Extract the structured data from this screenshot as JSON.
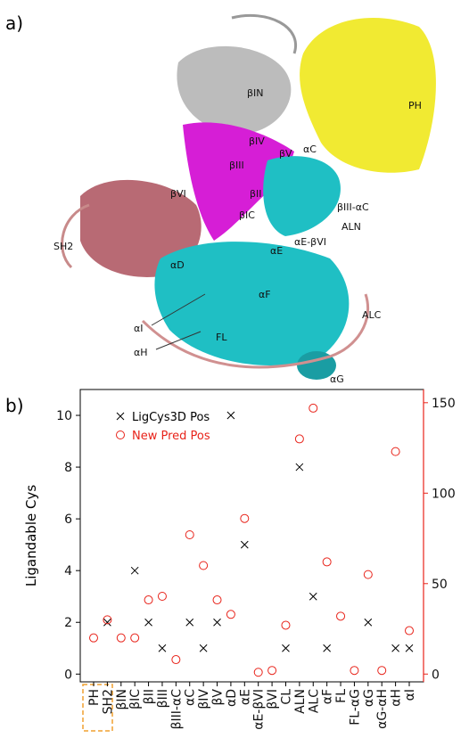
{
  "panel_a": {
    "label": "a)",
    "structure_labels": [
      "PH",
      "βIN",
      "βIV",
      "βV",
      "αC",
      "βIII",
      "βII",
      "βVI",
      "βIII-αC",
      "SH2",
      "βIC",
      "ALN",
      "αE-βVI",
      "αE",
      "αD",
      "αF",
      "αI",
      "FL",
      "ALC",
      "αH",
      "αG"
    ]
  },
  "chart_data": {
    "type": "scatter",
    "panel_label": "b)",
    "y_label": "Ligandable Cys",
    "categories": [
      "PH",
      "SH2",
      "βIN",
      "βIC",
      "βII",
      "βIII",
      "βIII-αC",
      "αC",
      "βIV",
      "βV",
      "αD",
      "αE",
      "αE-βVI",
      "βVI",
      "CL",
      "ALN",
      "ALC",
      "αF",
      "FL",
      "FL-αG",
      "αG",
      "αG-αH",
      "αH",
      "αI"
    ],
    "series": [
      {
        "name": "LigCys3D Pos",
        "color": "#000000",
        "marker": "x",
        "values": [
          null,
          2,
          null,
          4,
          2,
          1,
          null,
          2,
          1,
          2,
          10,
          5,
          null,
          null,
          1,
          8,
          3,
          1,
          null,
          null,
          2,
          null,
          1,
          1
        ]
      },
      {
        "name": "New Pred Pos",
        "color": "#e8231a",
        "marker": "o",
        "axis": "y2",
        "values": [
          20,
          30,
          20,
          20,
          41,
          43,
          8,
          77,
          60,
          41,
          33,
          86,
          1,
          2,
          27,
          130,
          147,
          62,
          32,
          2,
          55,
          2,
          123,
          24
        ]
      }
    ],
    "ylim": [
      -0.3,
      11
    ],
    "yticks": [
      0,
      2,
      4,
      6,
      8,
      10
    ],
    "y2lim": [
      -4.3,
      157.3
    ],
    "y2ticks": [
      0,
      50,
      100,
      150
    ],
    "y2_color": "#e8231a",
    "legend": "upper left"
  }
}
